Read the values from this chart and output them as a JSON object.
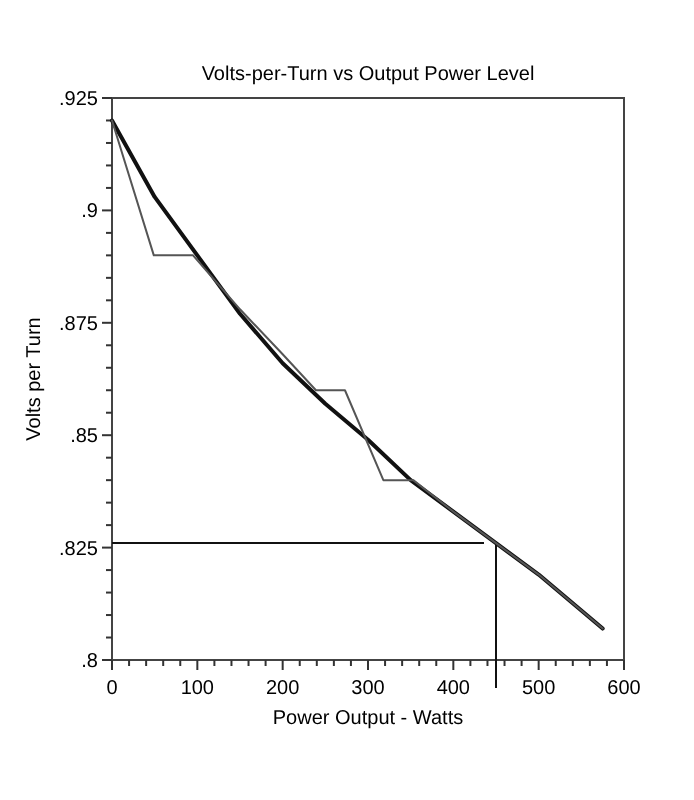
{
  "chart_data": {
    "type": "line",
    "title": "Volts-per-Turn vs Output Power Level",
    "xlabel": "Power Output - Watts",
    "ylabel": "Volts per Turn",
    "xlim": [
      0,
      600
    ],
    "ylim": [
      0.8,
      0.925
    ],
    "xticks": [
      0,
      {
        "value": 20,
        "label": null
      },
      {
        "value": 40,
        "label": null
      },
      {
        "value": 60,
        "label": null
      },
      {
        "value": 80,
        "label": null
      },
      100,
      {
        "value": 120,
        "label": null
      },
      {
        "value": 140,
        "label": null
      },
      {
        "value": 160,
        "label": null
      },
      {
        "value": 180,
        "label": null
      },
      200,
      {
        "value": 220,
        "label": null
      },
      {
        "value": 240,
        "label": null
      },
      {
        "value": 260,
        "label": null
      },
      {
        "value": 280,
        "label": null
      },
      300,
      {
        "value": 320,
        "label": null
      },
      {
        "value": 340,
        "label": null
      },
      {
        "value": 360,
        "label": null
      },
      {
        "value": 380,
        "label": null
      },
      400,
      {
        "value": 420,
        "label": null
      },
      {
        "value": 440,
        "label": null
      },
      {
        "value": 460,
        "label": null
      },
      {
        "value": 480,
        "label": null
      },
      500,
      {
        "value": 520,
        "label": null
      },
      {
        "value": 540,
        "label": null
      },
      {
        "value": 560,
        "label": null
      },
      {
        "value": 580,
        "label": null
      },
      600
    ],
    "yticks": [
      {
        "value": 0.8,
        "label": ".8"
      },
      {
        "value": 0.805,
        "label": null
      },
      {
        "value": 0.81,
        "label": null
      },
      {
        "value": 0.815,
        "label": null
      },
      {
        "value": 0.82,
        "label": null
      },
      {
        "value": 0.825,
        "label": ".825"
      },
      {
        "value": 0.83,
        "label": null
      },
      {
        "value": 0.835,
        "label": null
      },
      {
        "value": 0.84,
        "label": null
      },
      {
        "value": 0.845,
        "label": null
      },
      {
        "value": 0.85,
        "label": ".85"
      },
      {
        "value": 0.855,
        "label": null
      },
      {
        "value": 0.86,
        "label": null
      },
      {
        "value": 0.865,
        "label": null
      },
      {
        "value": 0.87,
        "label": null
      },
      {
        "value": 0.875,
        "label": ".875"
      },
      {
        "value": 0.88,
        "label": null
      },
      {
        "value": 0.885,
        "label": null
      },
      {
        "value": 0.89,
        "label": null
      },
      {
        "value": 0.895,
        "label": null
      },
      {
        "value": 0.9,
        "label": ".9"
      },
      {
        "value": 0.905,
        "label": null
      },
      {
        "value": 0.91,
        "label": null
      },
      {
        "value": 0.915,
        "label": null
      },
      {
        "value": 0.92,
        "label": null
      },
      {
        "value": 0.925,
        "label": ".925"
      }
    ],
    "grid": false,
    "marker": "none",
    "line_style": "solid",
    "series": [
      {
        "color": "#111111",
        "x": [
          0,
          50,
          100,
          150,
          200,
          250,
          300,
          350,
          400,
          450,
          500,
          550,
          575
        ],
        "values": [
          0.92,
          0.903,
          0.89,
          0.877,
          0.866,
          0.857,
          0.849,
          0.84,
          0.833,
          0.826,
          0.819,
          0.811,
          0.807
        ]
      },
      {
        "color": "#555555",
        "x": [
          0,
          49,
          95,
          150,
          200,
          239,
          273,
          318,
          353,
          400,
          450,
          500,
          550,
          575
        ],
        "values": [
          0.92,
          0.89,
          0.89,
          0.878,
          0.868,
          0.86,
          0.86,
          0.84,
          0.84,
          0.833,
          0.826,
          0.819,
          0.811,
          0.807
        ]
      }
    ],
    "ref_lines": [
      {
        "axis": "y",
        "value": 0.826,
        "color": "#111111"
      },
      {
        "axis": "x",
        "value": 450,
        "color": "#111111"
      }
    ]
  }
}
